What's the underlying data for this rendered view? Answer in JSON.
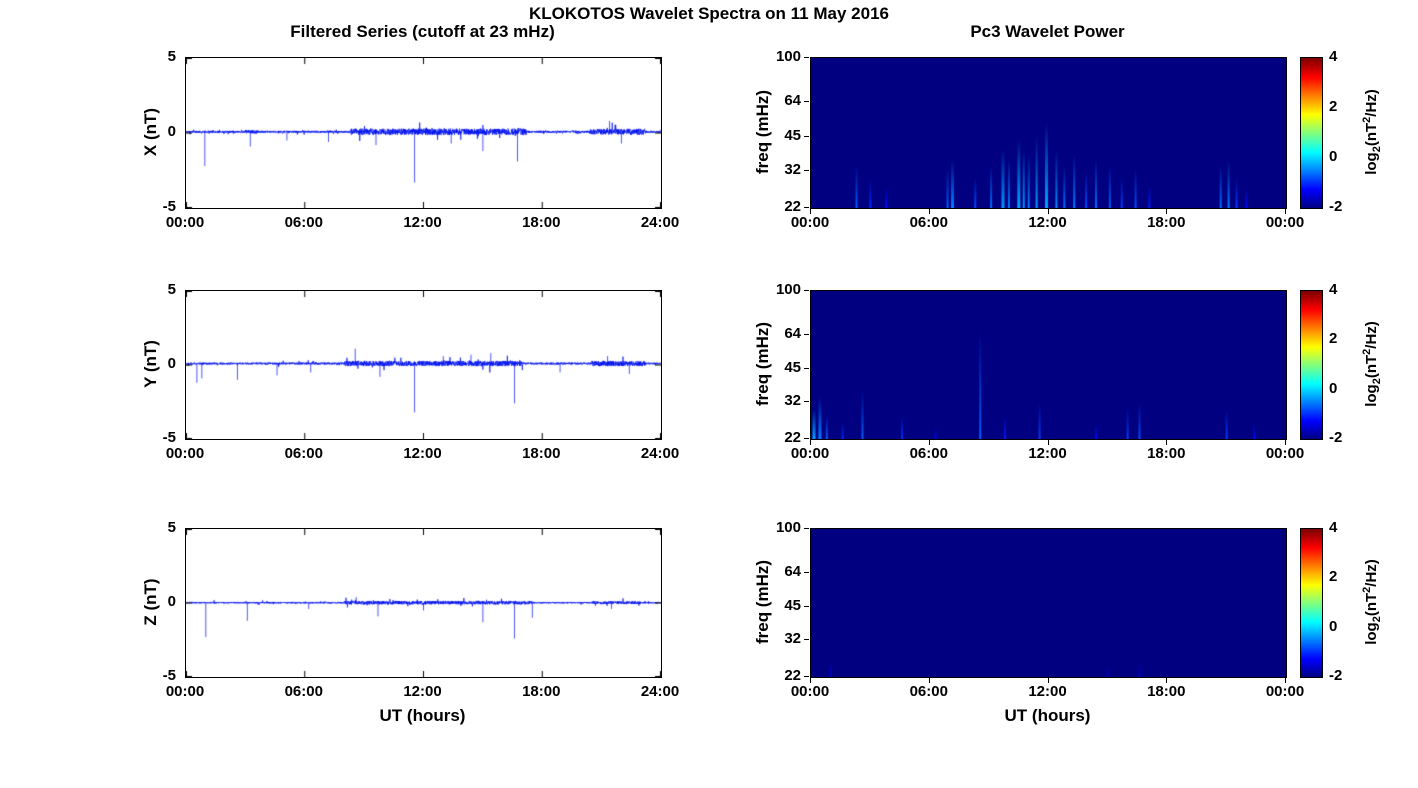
{
  "figure": {
    "title": "KLOKOTOS Wavelet Spectra on 11 May 2016",
    "background": "#ffffff"
  },
  "colorbar": {
    "ticks": [
      "4",
      "2",
      "0",
      "-2"
    ],
    "range": [
      -2,
      4
    ],
    "colormap": "jet",
    "label": "log2(nT^2/Hz)",
    "label_parts": {
      "p1": "log",
      "sub": "2",
      "p2": "(nT",
      "sup": "2",
      "p3": "/Hz)"
    }
  },
  "chart_data": [
    {
      "id": "filtered-series-x",
      "type": "line",
      "title": "Filtered Series (cutoff at 23 mHz)",
      "ylabel": "X (nT)",
      "xlabel": "",
      "x_tick_labels": [
        "00:00",
        "06:00",
        "12:00",
        "18:00",
        "24:00"
      ],
      "y_tick_labels": [
        "5",
        "0",
        "-5"
      ],
      "xlim_hours": [
        0,
        24
      ],
      "ylim": [
        -5,
        5
      ],
      "line_color": "#0010ee",
      "baseline": 0.08,
      "noise_amp": 0.07,
      "busy_intervals": [
        [
          3.0,
          3.6,
          0.12
        ],
        [
          8.3,
          17.2,
          0.22
        ],
        [
          20.4,
          23.2,
          0.2
        ]
      ],
      "seed": 11,
      "spikes": [
        {
          "t": 0.95,
          "v": -2.2
        },
        {
          "t": 3.25,
          "v": -0.9
        },
        {
          "t": 5.1,
          "v": -0.5
        },
        {
          "t": 7.2,
          "v": -0.6
        },
        {
          "t": 9.6,
          "v": -0.8
        },
        {
          "t": 11.55,
          "v": -3.3
        },
        {
          "t": 13.4,
          "v": -0.7
        },
        {
          "t": 15.0,
          "v": -1.2
        },
        {
          "t": 16.75,
          "v": -1.9
        },
        {
          "t": 21.4,
          "v": 0.8
        },
        {
          "t": 22.0,
          "v": -0.7
        }
      ]
    },
    {
      "id": "wavelet-power-x",
      "type": "heatmap",
      "title": "Pc3 Wavelet Power",
      "ylabel": "freq (mHz)",
      "xlabel": "",
      "x_tick_labels": [
        "00:00",
        "06:00",
        "12:00",
        "18:00",
        "00:00"
      ],
      "y_tick_labels": [
        "100",
        "64",
        "45",
        "32",
        "22"
      ],
      "xlim_hours": [
        0,
        24
      ],
      "freq_range_mhz": [
        22,
        100
      ],
      "power_range_log2": [
        -2,
        4
      ],
      "background_power": -2,
      "streaks": [
        {
          "t": 2.3,
          "fmax": 34,
          "p": -0.7,
          "w": 2
        },
        {
          "t": 3.0,
          "fmax": 30,
          "p": -1.0,
          "w": 2
        },
        {
          "t": 3.8,
          "fmax": 28,
          "p": -1.2,
          "w": 2
        },
        {
          "t": 6.9,
          "fmax": 33,
          "p": -0.7,
          "w": 2
        },
        {
          "t": 7.15,
          "fmax": 36,
          "p": -0.5,
          "w": 3
        },
        {
          "t": 8.3,
          "fmax": 30,
          "p": -0.8,
          "w": 2
        },
        {
          "t": 9.1,
          "fmax": 34,
          "p": -0.6,
          "w": 2
        },
        {
          "t": 9.7,
          "fmax": 40,
          "p": -0.35,
          "w": 3
        },
        {
          "t": 10.0,
          "fmax": 36,
          "p": -0.5,
          "w": 2
        },
        {
          "t": 10.5,
          "fmax": 44,
          "p": -0.25,
          "w": 3
        },
        {
          "t": 10.75,
          "fmax": 40,
          "p": -0.35,
          "w": 2
        },
        {
          "t": 11.0,
          "fmax": 38,
          "p": -0.5,
          "w": 2
        },
        {
          "t": 11.4,
          "fmax": 46,
          "p": -0.3,
          "w": 2
        },
        {
          "t": 11.9,
          "fmax": 52,
          "p": -0.25,
          "w": 3
        },
        {
          "t": 12.4,
          "fmax": 40,
          "p": -0.4,
          "w": 2
        },
        {
          "t": 12.8,
          "fmax": 34,
          "p": -0.6,
          "w": 2
        },
        {
          "t": 13.3,
          "fmax": 38,
          "p": -0.5,
          "w": 2
        },
        {
          "t": 13.9,
          "fmax": 32,
          "p": -0.8,
          "w": 2
        },
        {
          "t": 14.4,
          "fmax": 36,
          "p": -0.6,
          "w": 2
        },
        {
          "t": 15.1,
          "fmax": 34,
          "p": -0.7,
          "w": 2
        },
        {
          "t": 15.7,
          "fmax": 30,
          "p": -0.9,
          "w": 2
        },
        {
          "t": 16.4,
          "fmax": 33,
          "p": -0.8,
          "w": 2
        },
        {
          "t": 17.1,
          "fmax": 28,
          "p": -1.1,
          "w": 2
        },
        {
          "t": 20.7,
          "fmax": 34,
          "p": -0.6,
          "w": 2
        },
        {
          "t": 21.1,
          "fmax": 36,
          "p": -0.5,
          "w": 2
        },
        {
          "t": 21.5,
          "fmax": 30,
          "p": -0.9,
          "w": 2
        },
        {
          "t": 22.0,
          "fmax": 27,
          "p": -1.2,
          "w": 2
        }
      ]
    },
    {
      "id": "filtered-series-y",
      "type": "line",
      "title": "",
      "ylabel": "Y (nT)",
      "xlabel": "",
      "x_tick_labels": [
        "00:00",
        "06:00",
        "12:00",
        "18:00",
        "24:00"
      ],
      "y_tick_labels": [
        "5",
        "0",
        "-5"
      ],
      "xlim_hours": [
        0,
        24
      ],
      "ylim": [
        -5,
        5
      ],
      "line_color": "#0010ee",
      "baseline": 0.1,
      "noise_amp": 0.07,
      "busy_intervals": [
        [
          8.0,
          17.0,
          0.18
        ],
        [
          20.5,
          23.2,
          0.18
        ]
      ],
      "seed": 22,
      "spikes": [
        {
          "t": 0.55,
          "v": -1.2
        },
        {
          "t": 0.8,
          "v": -0.9
        },
        {
          "t": 2.6,
          "v": -1.0
        },
        {
          "t": 4.6,
          "v": -0.7
        },
        {
          "t": 6.3,
          "v": -0.5
        },
        {
          "t": 8.55,
          "v": 1.1
        },
        {
          "t": 9.8,
          "v": -0.8
        },
        {
          "t": 11.55,
          "v": -3.2
        },
        {
          "t": 13.0,
          "v": 0.6
        },
        {
          "t": 14.4,
          "v": 0.7
        },
        {
          "t": 15.4,
          "v": 0.8
        },
        {
          "t": 16.6,
          "v": -2.6
        },
        {
          "t": 18.9,
          "v": -0.5
        },
        {
          "t": 21.3,
          "v": 0.6
        },
        {
          "t": 22.4,
          "v": -0.6
        }
      ]
    },
    {
      "id": "wavelet-power-y",
      "type": "heatmap",
      "title": "",
      "ylabel": "freq (mHz)",
      "xlabel": "",
      "x_tick_labels": [
        "00:00",
        "06:00",
        "12:00",
        "18:00",
        "00:00"
      ],
      "y_tick_labels": [
        "100",
        "64",
        "45",
        "32",
        "22"
      ],
      "xlim_hours": [
        0,
        24
      ],
      "freq_range_mhz": [
        22,
        100
      ],
      "power_range_log2": [
        -2,
        4
      ],
      "background_power": -2,
      "streaks": [
        {
          "t": 0.15,
          "fmax": 30,
          "p": -0.3,
          "w": 3
        },
        {
          "t": 0.45,
          "fmax": 34,
          "p": -0.5,
          "w": 3
        },
        {
          "t": 0.8,
          "fmax": 28,
          "p": -0.7,
          "w": 2
        },
        {
          "t": 1.6,
          "fmax": 26,
          "p": -1.0,
          "w": 2
        },
        {
          "t": 2.6,
          "fmax": 36,
          "p": -0.7,
          "w": 2
        },
        {
          "t": 4.6,
          "fmax": 28,
          "p": -1.0,
          "w": 2
        },
        {
          "t": 6.3,
          "fmax": 25,
          "p": -1.3,
          "w": 2
        },
        {
          "t": 8.55,
          "fmax": 68,
          "p": -0.7,
          "w": 2
        },
        {
          "t": 9.8,
          "fmax": 28,
          "p": -1.1,
          "w": 2
        },
        {
          "t": 11.55,
          "fmax": 32,
          "p": -0.9,
          "w": 2
        },
        {
          "t": 14.4,
          "fmax": 26,
          "p": -1.2,
          "w": 2
        },
        {
          "t": 16.0,
          "fmax": 30,
          "p": -0.9,
          "w": 2
        },
        {
          "t": 16.6,
          "fmax": 32,
          "p": -0.8,
          "w": 2
        },
        {
          "t": 21.0,
          "fmax": 30,
          "p": -0.9,
          "w": 2
        },
        {
          "t": 22.4,
          "fmax": 26,
          "p": -1.2,
          "w": 2
        }
      ]
    },
    {
      "id": "filtered-series-z",
      "type": "line",
      "title": "",
      "ylabel": "Z (nT)",
      "xlabel": "UT (hours)",
      "x_tick_labels": [
        "00:00",
        "06:00",
        "12:00",
        "18:00",
        "24:00"
      ],
      "y_tick_labels": [
        "5",
        "0",
        "-5"
      ],
      "xlim_hours": [
        0,
        24
      ],
      "ylim": [
        -5,
        5
      ],
      "line_color": "#0010ee",
      "baseline": 0.02,
      "noise_amp": 0.05,
      "busy_intervals": [
        [
          8.0,
          17.5,
          0.12
        ],
        [
          20.5,
          23.0,
          0.1
        ]
      ],
      "seed": 33,
      "spikes": [
        {
          "t": 1.0,
          "v": -2.3
        },
        {
          "t": 3.1,
          "v": -1.2
        },
        {
          "t": 6.2,
          "v": -0.4
        },
        {
          "t": 8.6,
          "v": 0.4
        },
        {
          "t": 9.7,
          "v": -0.9
        },
        {
          "t": 12.0,
          "v": -0.5
        },
        {
          "t": 15.0,
          "v": -1.3
        },
        {
          "t": 16.6,
          "v": -2.4
        },
        {
          "t": 17.5,
          "v": -1.0
        },
        {
          "t": 21.5,
          "v": -0.4
        }
      ]
    },
    {
      "id": "wavelet-power-z",
      "type": "heatmap",
      "title": "",
      "ylabel": "freq (mHz)",
      "xlabel": "UT (hours)",
      "x_tick_labels": [
        "00:00",
        "06:00",
        "12:00",
        "18:00",
        "00:00"
      ],
      "y_tick_labels": [
        "100",
        "64",
        "45",
        "32",
        "22"
      ],
      "xlim_hours": [
        0,
        24
      ],
      "freq_range_mhz": [
        22,
        100
      ],
      "power_range_log2": [
        -2,
        4
      ],
      "background_power": -2,
      "streaks": [
        {
          "t": 1.0,
          "fmax": 26,
          "p": -1.5,
          "w": 2
        },
        {
          "t": 15.0,
          "fmax": 25,
          "p": -1.6,
          "w": 2
        },
        {
          "t": 16.6,
          "fmax": 26,
          "p": -1.5,
          "w": 2
        }
      ]
    }
  ]
}
